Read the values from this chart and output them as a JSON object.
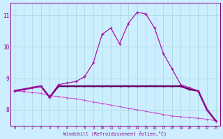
{
  "xlabel": "Windchill (Refroidissement éolien,°C)",
  "x": [
    0,
    1,
    2,
    3,
    4,
    5,
    6,
    7,
    8,
    9,
    10,
    11,
    12,
    13,
    14,
    15,
    16,
    17,
    18,
    19,
    20,
    21,
    22,
    23
  ],
  "line1": [
    8.6,
    8.65,
    8.7,
    8.75,
    8.4,
    8.8,
    8.85,
    8.9,
    9.05,
    9.5,
    10.4,
    10.6,
    10.1,
    10.75,
    11.1,
    11.05,
    10.6,
    9.8,
    9.3,
    8.8,
    8.7,
    8.6,
    8.0,
    7.65
  ],
  "line2": [
    8.6,
    8.65,
    8.7,
    8.75,
    8.4,
    8.75,
    8.75,
    8.75,
    8.75,
    8.75,
    8.75,
    8.75,
    8.75,
    8.75,
    8.75,
    8.75,
    8.75,
    8.75,
    8.75,
    8.75,
    8.65,
    8.6,
    8.0,
    7.65
  ],
  "line3": [
    8.6,
    8.58,
    8.55,
    8.52,
    8.45,
    8.42,
    8.38,
    8.35,
    8.3,
    8.25,
    8.2,
    8.15,
    8.1,
    8.05,
    8.0,
    7.95,
    7.9,
    7.85,
    7.8,
    7.78,
    7.75,
    7.73,
    7.7,
    7.65
  ],
  "line_color1": "#aa10aa",
  "line_color2": "#660066",
  "line_color3": "#cc44cc",
  "bg_color": "#cceeff",
  "grid_color": "#aadddd",
  "text_color": "#880088",
  "ylim": [
    7.5,
    11.4
  ],
  "yticks": [
    8,
    9,
    10,
    11
  ],
  "xticks": [
    0,
    1,
    2,
    3,
    4,
    5,
    6,
    7,
    8,
    9,
    10,
    11,
    12,
    13,
    14,
    15,
    16,
    17,
    18,
    19,
    20,
    21,
    22,
    23
  ]
}
